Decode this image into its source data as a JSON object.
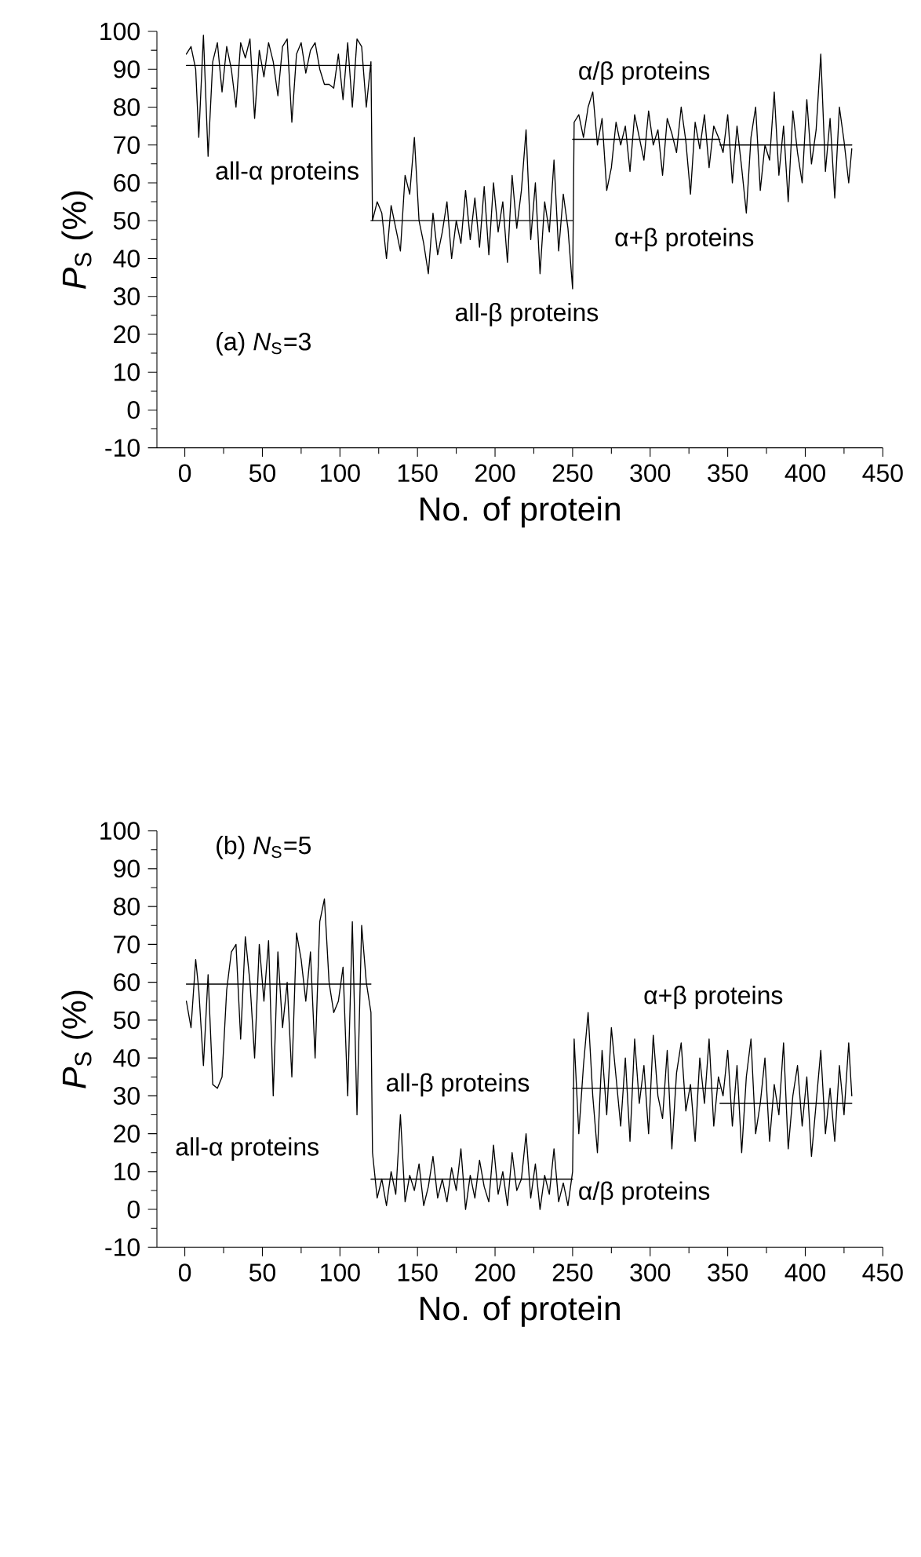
{
  "chart_data": [
    {
      "type": "line",
      "xlabel": "No. of protein",
      "ylabel": "*P*$_{S}$ (%)",
      "xlim": [
        -18,
        450
      ],
      "ylim": [
        -10,
        100
      ],
      "xticks": [
        0,
        50,
        100,
        150,
        200,
        250,
        300,
        350,
        400,
        450
      ],
      "yticks": [
        -10,
        0,
        10,
        20,
        30,
        40,
        50,
        60,
        70,
        80,
        90,
        100
      ],
      "annotations": [
        "(a) *N*$_{S}$=3",
        "all-α proteins",
        "all-β proteins",
        "α/β proteins",
        "α+β proteins"
      ],
      "series": [
        {
          "color": "#000000",
          "x": [
            1,
            4,
            7,
            9,
            12,
            15,
            18,
            21,
            24,
            27,
            30,
            33,
            36,
            39,
            42,
            45,
            48,
            51,
            54,
            57,
            60,
            63,
            66,
            69,
            72,
            75,
            78,
            81,
            84,
            87,
            90,
            93,
            96,
            99,
            102,
            105,
            108,
            111,
            114,
            117,
            120,
            121,
            124,
            127,
            130,
            133,
            136,
            139,
            142,
            145,
            148,
            151,
            154,
            157,
            160,
            163,
            166,
            169,
            172,
            175,
            178,
            181,
            184,
            187,
            190,
            193,
            196,
            199,
            202,
            205,
            208,
            211,
            214,
            217,
            220,
            223,
            226,
            229,
            232,
            235,
            238,
            241,
            244,
            247,
            250,
            251,
            254,
            257,
            260,
            263,
            266,
            269,
            272,
            275,
            278,
            281,
            284,
            287,
            290,
            293,
            296,
            299,
            302,
            305,
            308,
            311,
            314,
            317,
            320,
            323,
            326,
            329,
            332,
            335,
            338,
            341,
            344,
            347,
            350,
            353,
            356,
            359,
            362,
            365,
            368,
            371,
            374,
            377,
            380,
            383,
            386,
            389,
            392,
            395,
            398,
            401,
            404,
            407,
            410,
            413,
            416,
            419,
            422,
            425,
            428,
            430
          ],
          "values": [
            94,
            96,
            90,
            72,
            99,
            67,
            92,
            97,
            84,
            96,
            90,
            80,
            97,
            93,
            98,
            77,
            95,
            88,
            97,
            92,
            83,
            96,
            98,
            76,
            94,
            97,
            89,
            95,
            97,
            90,
            86,
            86,
            85,
            94,
            82,
            97,
            80,
            98,
            96,
            80,
            92,
            50,
            55,
            52,
            40,
            54,
            48,
            42,
            62,
            57,
            72,
            50,
            44,
            36,
            52,
            41,
            47,
            55,
            40,
            50,
            44,
            58,
            45,
            56,
            43,
            59,
            41,
            60,
            47,
            55,
            39,
            62,
            48,
            58,
            74,
            45,
            60,
            36,
            55,
            47,
            66,
            42,
            57,
            48,
            32,
            76,
            78,
            72,
            80,
            84,
            70,
            77,
            58,
            64,
            76,
            70,
            75,
            63,
            78,
            72,
            66,
            79,
            70,
            74,
            62,
            77,
            73,
            68,
            80,
            71,
            57,
            76,
            69,
            78,
            64,
            75,
            72,
            68,
            78,
            60,
            75,
            64,
            52,
            72,
            80,
            58,
            70,
            66,
            84,
            62,
            75,
            55,
            79,
            68,
            60,
            82,
            65,
            74,
            94,
            63,
            77,
            56,
            80,
            71,
            60,
            69
          ]
        },
        {
          "color": "#000000",
          "x": [
            1,
            120
          ],
          "values": [
            91,
            91
          ]
        },
        {
          "color": "#000000",
          "x": [
            120,
            250
          ],
          "values": [
            50,
            50
          ]
        },
        {
          "color": "#000000",
          "x": [
            250,
            345
          ],
          "values": [
            71.5,
            71.5
          ]
        },
        {
          "color": "#000000",
          "x": [
            345,
            430
          ],
          "values": [
            70,
            70
          ]
        }
      ]
    },
    {
      "type": "line",
      "xlabel": "No. of protein",
      "ylabel": "*P*$_{S}$ (%)",
      "xlim": [
        -18,
        450
      ],
      "ylim": [
        -10,
        100
      ],
      "xticks": [
        0,
        50,
        100,
        150,
        200,
        250,
        300,
        350,
        400,
        450
      ],
      "yticks": [
        -10,
        0,
        10,
        20,
        30,
        40,
        50,
        60,
        70,
        80,
        90,
        100
      ],
      "annotations": [
        "(b) *N*$_{S}$=5",
        "all-α proteins",
        "all-β proteins",
        "α/β proteins",
        "α+β proteins"
      ],
      "series": [
        {
          "color": "#000000",
          "x": [
            1,
            4,
            7,
            9,
            12,
            15,
            18,
            21,
            24,
            27,
            30,
            33,
            36,
            39,
            42,
            45,
            48,
            51,
            54,
            57,
            60,
            63,
            66,
            69,
            72,
            75,
            78,
            81,
            84,
            87,
            90,
            93,
            96,
            99,
            102,
            105,
            108,
            111,
            114,
            117,
            120,
            121,
            124,
            127,
            130,
            133,
            136,
            139,
            142,
            145,
            148,
            151,
            154,
            157,
            160,
            163,
            166,
            169,
            172,
            175,
            178,
            181,
            184,
            187,
            190,
            193,
            196,
            199,
            202,
            205,
            208,
            211,
            214,
            217,
            220,
            223,
            226,
            229,
            232,
            235,
            238,
            241,
            244,
            247,
            250,
            251,
            254,
            257,
            260,
            263,
            266,
            269,
            272,
            275,
            278,
            281,
            284,
            287,
            290,
            293,
            296,
            299,
            302,
            305,
            308,
            311,
            314,
            317,
            320,
            323,
            326,
            329,
            332,
            335,
            338,
            341,
            344,
            347,
            350,
            353,
            356,
            359,
            362,
            365,
            368,
            371,
            374,
            377,
            380,
            383,
            386,
            389,
            392,
            395,
            398,
            401,
            404,
            407,
            410,
            413,
            416,
            419,
            422,
            425,
            428,
            430
          ],
          "values": [
            55,
            48,
            66,
            58,
            38,
            62,
            33,
            32,
            35,
            58,
            68,
            70,
            45,
            72,
            60,
            40,
            70,
            55,
            71,
            30,
            68,
            48,
            60,
            35,
            73,
            66,
            55,
            68,
            40,
            76,
            82,
            60,
            52,
            55,
            64,
            30,
            76,
            25,
            75,
            60,
            52,
            15,
            3,
            8,
            1,
            10,
            4,
            25,
            2,
            9,
            5,
            12,
            1,
            6,
            14,
            3,
            8,
            2,
            11,
            5,
            16,
            0,
            9,
            3,
            13,
            6,
            2,
            17,
            4,
            10,
            1,
            15,
            5,
            8,
            20,
            3,
            12,
            0,
            9,
            4,
            16,
            2,
            7,
            1,
            10,
            45,
            20,
            38,
            52,
            30,
            15,
            42,
            25,
            48,
            35,
            22,
            40,
            18,
            45,
            28,
            38,
            20,
            46,
            30,
            24,
            42,
            16,
            36,
            44,
            26,
            33,
            18,
            40,
            28,
            45,
            22,
            35,
            30,
            42,
            22,
            38,
            15,
            35,
            45,
            20,
            28,
            40,
            18,
            33,
            25,
            44,
            16,
            30,
            38,
            22,
            35,
            14,
            28,
            42,
            20,
            32,
            18,
            38,
            25,
            44,
            30
          ]
        },
        {
          "color": "#000000",
          "x": [
            1,
            120
          ],
          "values": [
            59.5,
            59.5
          ]
        },
        {
          "color": "#000000",
          "x": [
            120,
            250
          ],
          "values": [
            8,
            8
          ]
        },
        {
          "color": "#000000",
          "x": [
            250,
            345
          ],
          "values": [
            32,
            32
          ]
        },
        {
          "color": "#000000",
          "x": [
            345,
            430
          ],
          "values": [
            28,
            28
          ]
        }
      ]
    }
  ]
}
